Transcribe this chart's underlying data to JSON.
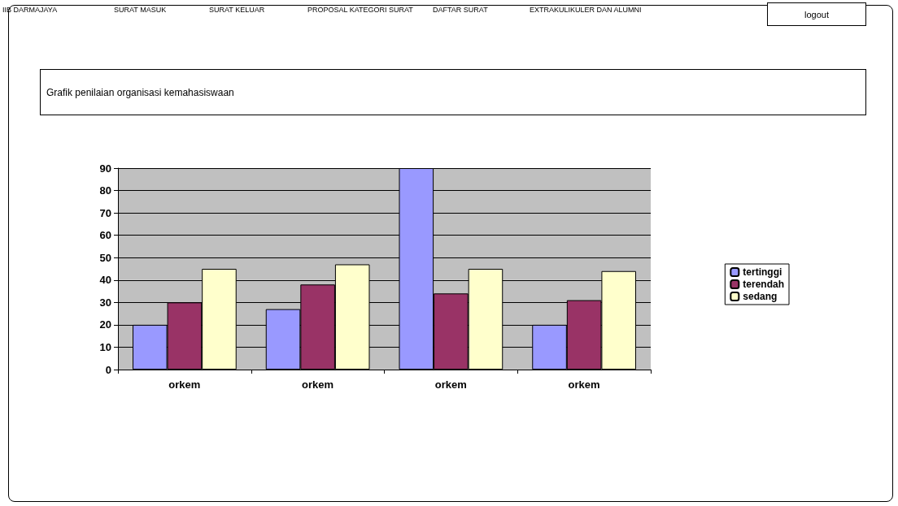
{
  "chart_data": {
    "type": "bar",
    "title": "Grafik penilaian organisasi kemahasiswaan",
    "annotations": [
      "IIB DARMAJAYA",
      "SURAT MASUK",
      "SURAT KELUAR",
      "PROPOSAL  KATEGORI SURAT",
      "DAFTAR SURAT",
      "EXTRAKULIKULER DAN ALUMNI",
      "logout"
    ],
    "categories": [
      "orkem",
      "orkem",
      "orkem",
      "orkem"
    ],
    "series": [
      {
        "name": "tertinggi",
        "color": "#9999ff",
        "values": [
          20,
          27,
          90,
          20
        ]
      },
      {
        "name": "terendah",
        "color": "#993366",
        "values": [
          30,
          38,
          34,
          31
        ]
      },
      {
        "name": "sedang",
        "color": "#ffffcc",
        "values": [
          45,
          47,
          45,
          44
        ]
      }
    ],
    "ylim": [
      0,
      90
    ],
    "yticks": [
      0,
      10,
      20,
      30,
      40,
      50,
      60,
      70,
      80,
      90
    ],
    "grid": "y",
    "legend": "right"
  }
}
